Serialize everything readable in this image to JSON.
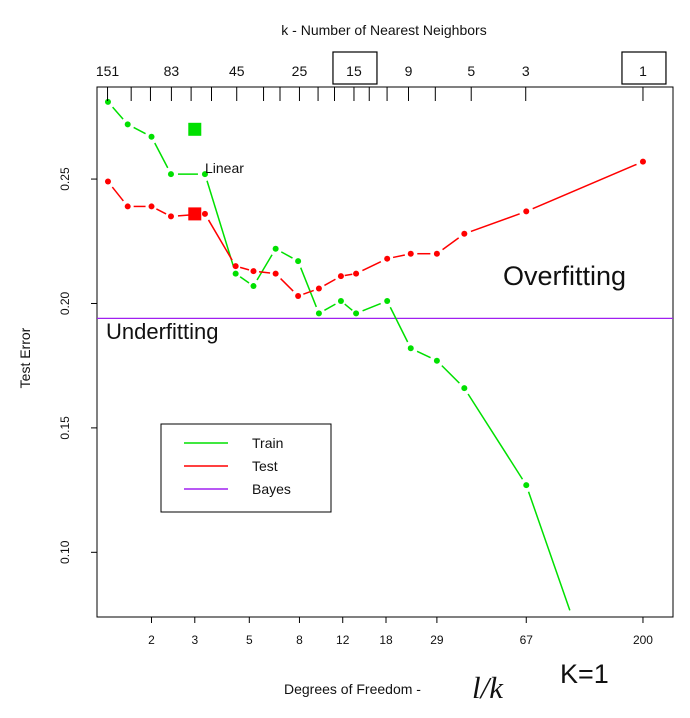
{
  "chart_data": {
    "type": "scatter",
    "title": "",
    "top_axis_label": "k -  Number of Nearest Neighbors",
    "xlabel": "Degrees of Freedom -",
    "xlabel_formula": "l/k",
    "ylabel": "Test Error",
    "x_scale": "log",
    "xlim": [
      1.2,
      265
    ],
    "ylim": [
      0.074,
      0.287
    ],
    "bottom_ticks": [
      2,
      3,
      5,
      8,
      12,
      18,
      29,
      67,
      200
    ],
    "top_ticks": [
      "151",
      "83",
      "45",
      "25",
      "15",
      "9",
      "5",
      "3",
      "1"
    ],
    "top_tick_boxed": [
      "15",
      "1"
    ],
    "y_ticks": [
      0.1,
      0.15,
      0.2,
      0.25
    ],
    "y_tick_labels": [
      "0.10",
      "0.15",
      "0.20",
      "0.25"
    ],
    "grid": false,
    "legend": {
      "position": "middle-left",
      "entries": [
        "Train",
        "Test",
        "Bayes"
      ]
    },
    "series": [
      {
        "name": "Train",
        "color": "#00e000",
        "style": "dashed-line-with-points",
        "x": [
          1.33,
          1.6,
          2,
          2.4,
          3.3,
          4.4,
          5.2,
          6.4,
          7.9,
          9.6,
          11.8,
          13.6,
          18.2,
          22.7,
          29,
          37.5,
          67,
          103
        ],
        "y": [
          0.281,
          0.272,
          0.267,
          0.252,
          0.252,
          0.212,
          0.207,
          0.222,
          0.217,
          0.196,
          0.201,
          0.196,
          0.201,
          0.182,
          0.177,
          0.166,
          0.127,
          0.074
        ]
      },
      {
        "name": "Test",
        "color": "#ff0000",
        "style": "dashed-line-with-points",
        "x": [
          1.33,
          1.6,
          2,
          2.4,
          3.3,
          4.4,
          5.2,
          6.4,
          7.9,
          9.6,
          11.8,
          13.6,
          18.2,
          22.7,
          29,
          37.5,
          67,
          200
        ],
        "y": [
          0.249,
          0.239,
          0.239,
          0.235,
          0.236,
          0.215,
          0.213,
          0.212,
          0.203,
          0.206,
          0.211,
          0.212,
          0.218,
          0.22,
          0.22,
          0.228,
          0.237,
          0.257
        ]
      },
      {
        "name": "Bayes",
        "color": "#a020f0",
        "style": "horizontal-line",
        "y": 0.194
      }
    ],
    "linear_model": {
      "label": "Linear",
      "x": 3,
      "train_error": 0.27,
      "test_error": 0.236
    },
    "annotations": {
      "overfitting": "Overfitting",
      "underfitting": "Underfitting",
      "k1": "K=1"
    }
  }
}
